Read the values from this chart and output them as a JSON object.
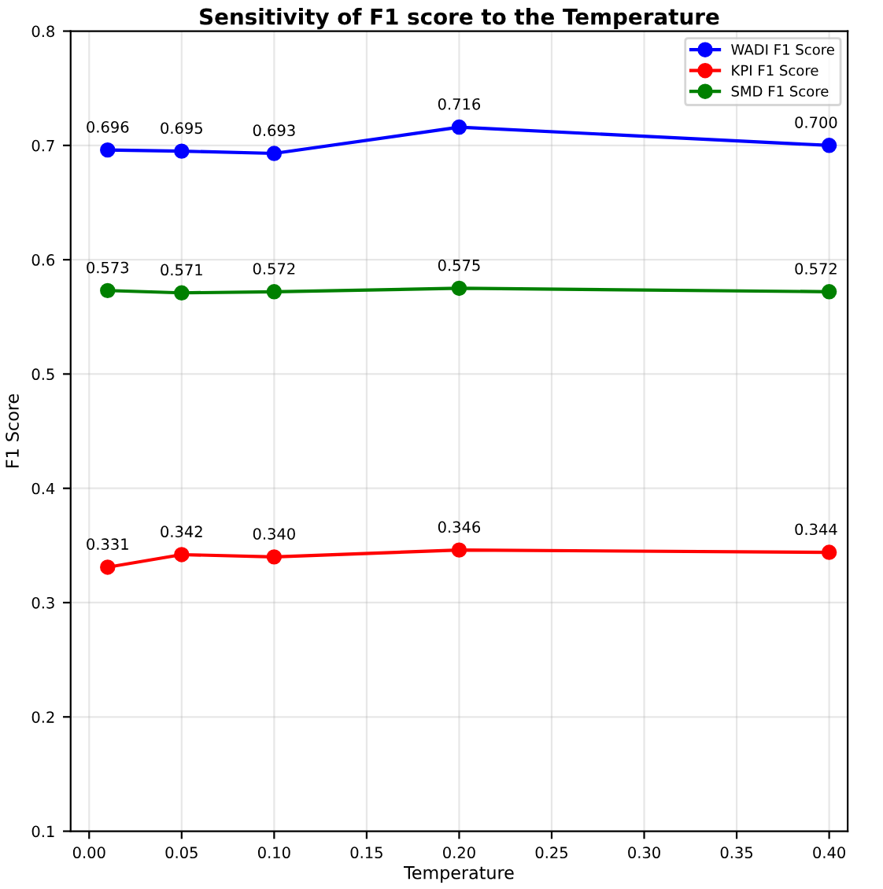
{
  "chart_data": {
    "type": "line",
    "title": "Sensitivity of F1 score to the Temperature",
    "xlabel": "Temperature",
    "ylabel": "F1 Score",
    "x": [
      0.01,
      0.05,
      0.1,
      0.2,
      0.4
    ],
    "series": [
      {
        "name": "WADI F1 Score",
        "color": "#0000ff",
        "values": [
          0.696,
          0.695,
          0.693,
          0.716,
          0.7
        ],
        "value_labels": [
          "0.696",
          "0.695",
          "0.693",
          "0.716",
          "0.700"
        ]
      },
      {
        "name": "KPI F1 Score",
        "color": "#ff0000",
        "values": [
          0.331,
          0.342,
          0.34,
          0.346,
          0.344
        ],
        "value_labels": [
          "0.331",
          "0.342",
          "0.340",
          "0.346",
          "0.344"
        ]
      },
      {
        "name": "SMD F1 Score",
        "color": "#008000",
        "values": [
          0.573,
          0.571,
          0.572,
          0.575,
          0.572
        ],
        "value_labels": [
          "0.573",
          "0.571",
          "0.572",
          "0.575",
          "0.572"
        ]
      }
    ],
    "marker": "circle",
    "line_style": "solid",
    "grid": true,
    "legend": "top right",
    "xlim": [
      -0.01,
      0.41
    ],
    "xticks": [
      {
        "value": 0.0,
        "label": "0.00"
      },
      {
        "value": 0.05,
        "label": "0.05"
      },
      {
        "value": 0.1,
        "label": "0.10"
      },
      {
        "value": 0.15,
        "label": "0.15"
      },
      {
        "value": 0.2,
        "label": "0.20"
      },
      {
        "value": 0.25,
        "label": "0.25"
      },
      {
        "value": 0.3,
        "label": "0.30"
      },
      {
        "value": 0.35,
        "label": "0.35"
      },
      {
        "value": 0.4,
        "label": "0.40"
      }
    ],
    "ylim": [
      0.1,
      0.8
    ],
    "yticks": [
      0.1,
      0.2,
      0.3,
      0.4,
      0.5,
      0.6,
      0.7,
      0.8
    ]
  }
}
